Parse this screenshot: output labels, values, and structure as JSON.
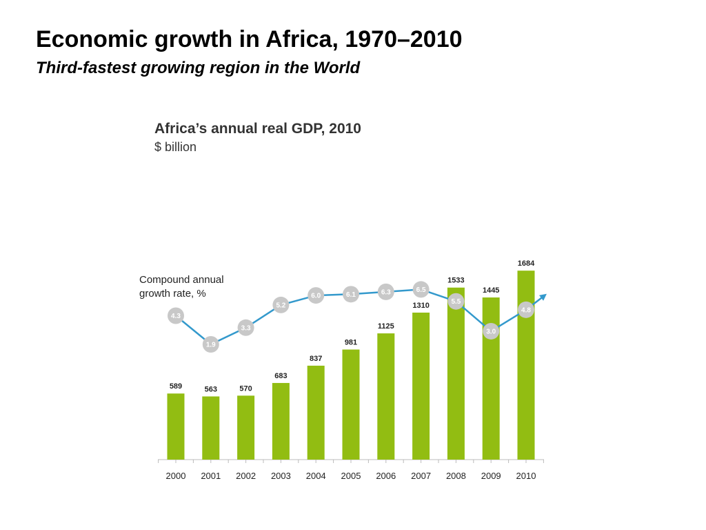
{
  "slide": {
    "title": "Economic growth in Africa, 1970–2010",
    "subtitle": "Third-fastest growing region in the World"
  },
  "chart_data": {
    "type": "bar",
    "title": "Africa’s annual real GDP, 2010",
    "subtitle": "$ billion",
    "categories": [
      "2000",
      "2001",
      "2002",
      "2003",
      "2004",
      "2005",
      "2006",
      "2007",
      "2008",
      "2009",
      "2010"
    ],
    "series": [
      {
        "type": "bar",
        "values": [
          589,
          563,
          570,
          683,
          837,
          981,
          1125,
          1310,
          1533,
          1445,
          1684
        ],
        "color": "#92bd12"
      },
      {
        "type": "line",
        "name": "Compound annual growth rate, %",
        "values": [
          4.3,
          1.9,
          3.3,
          5.2,
          6.0,
          6.1,
          6.3,
          6.5,
          5.5,
          3.0,
          4.8
        ],
        "labels": [
          "4.3",
          "1.9",
          "3.3",
          "5.2",
          "6.0",
          "6.1",
          "6.3",
          "6.5",
          "5.5",
          "3.0",
          "4.8"
        ],
        "color": "#3399cc",
        "marker_color": "#c8c8c8",
        "trend_arrow": true
      }
    ],
    "grid": false,
    "legend": "none",
    "data_labels": true
  }
}
